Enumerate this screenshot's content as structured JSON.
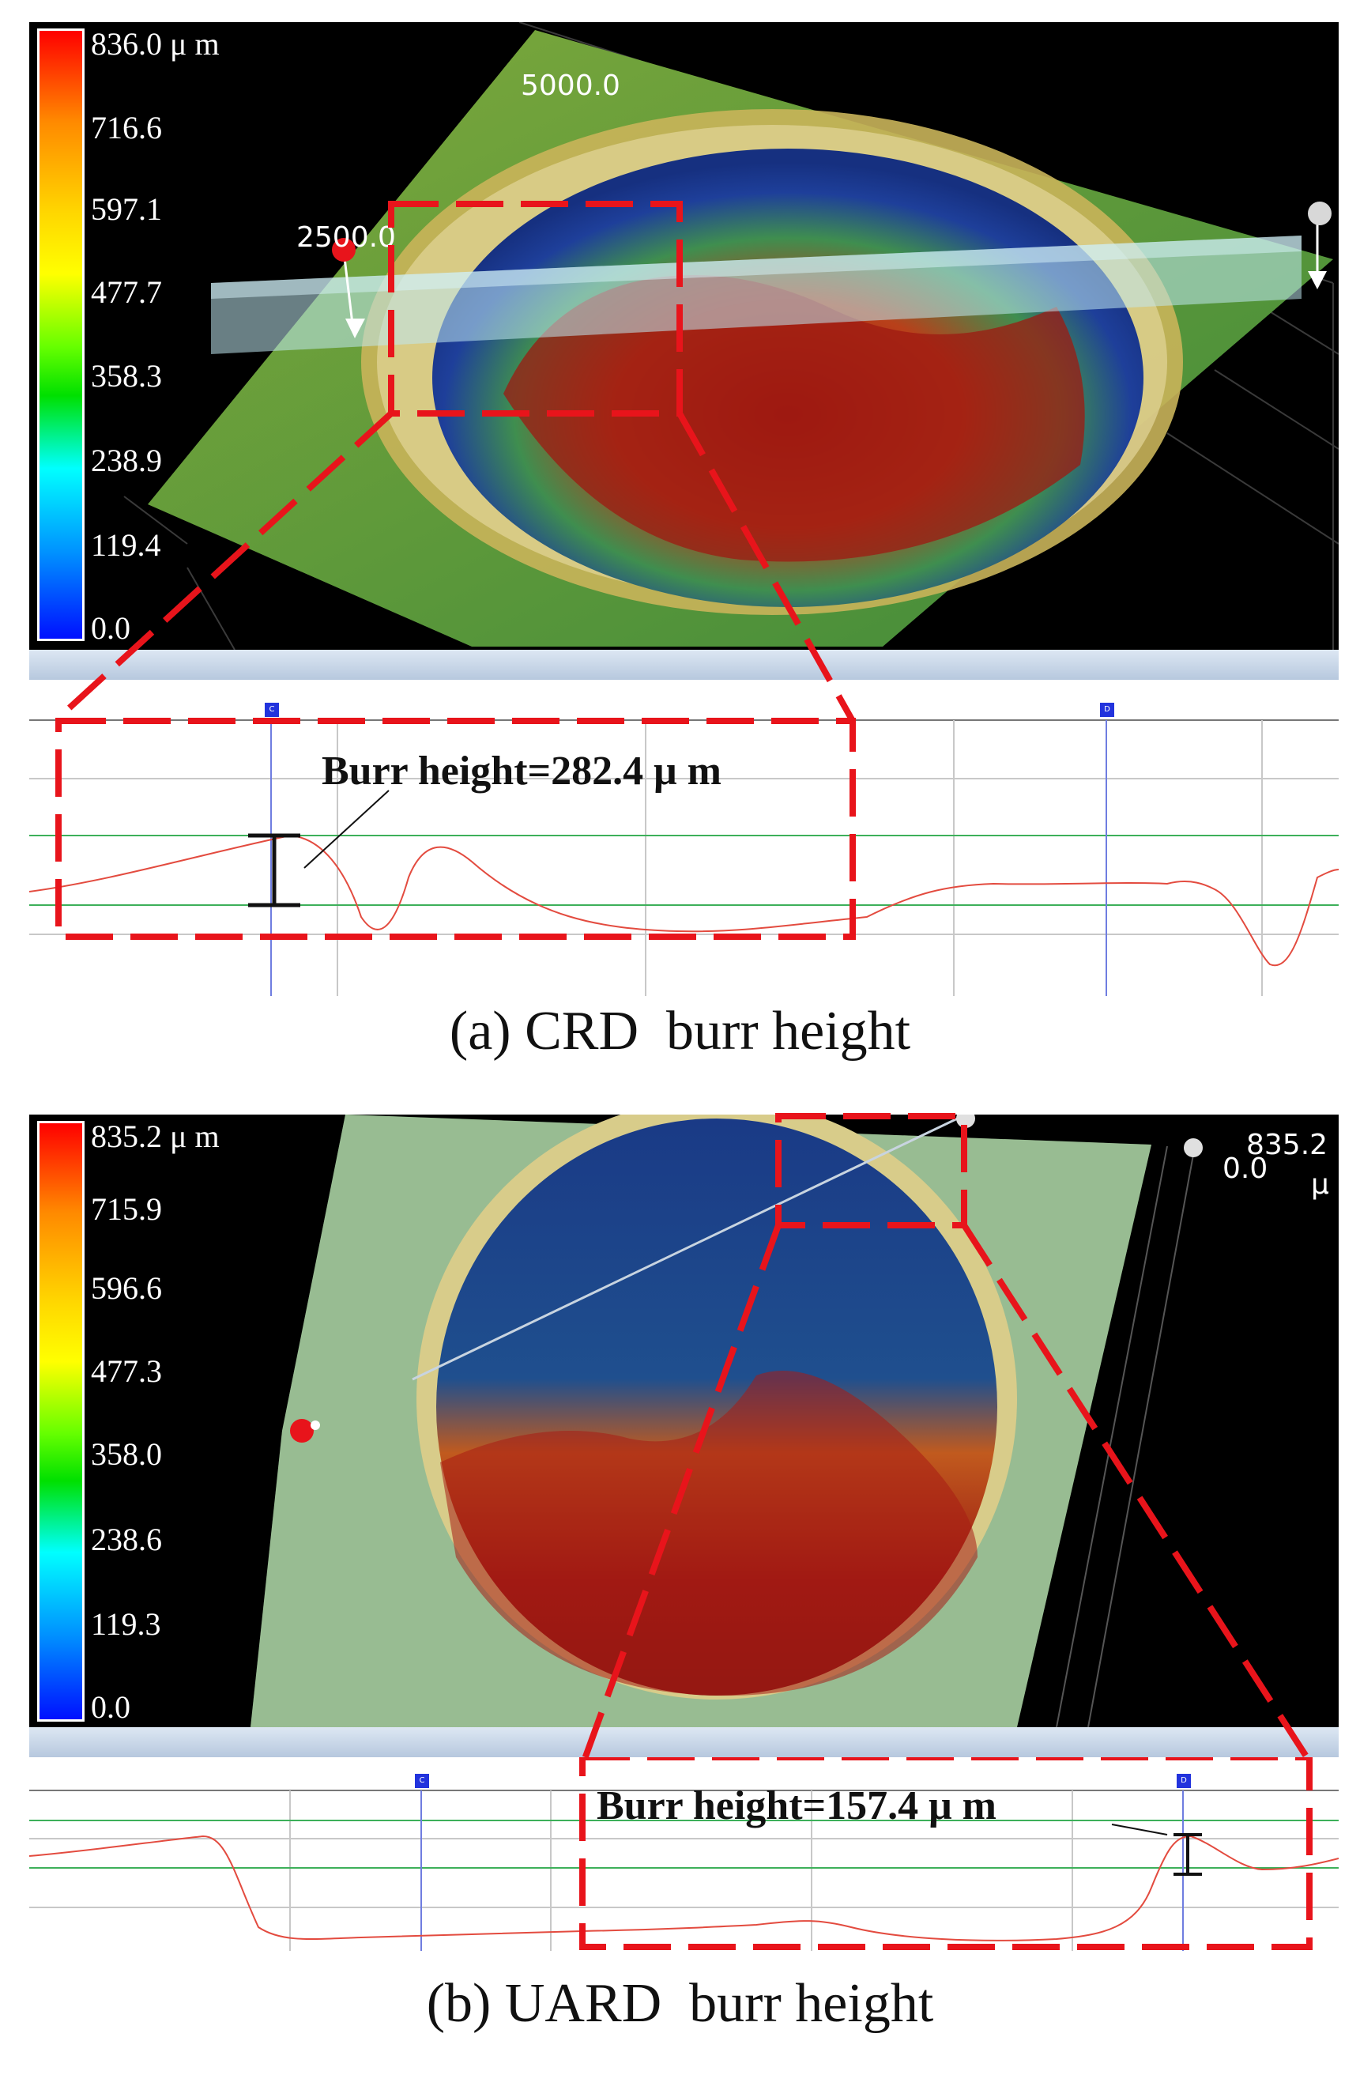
{
  "panel_a": {
    "scale": {
      "ticks": [
        "836.0 μ m",
        "716.6",
        "597.1",
        "477.7",
        "358.3",
        "238.9",
        "119.4",
        "0.0"
      ]
    },
    "axis_labels": [
      "5000.0",
      "2500.0"
    ],
    "annotation": "Burr height=282.4 μ m",
    "markers": [
      "C",
      "D"
    ],
    "caption": "(a) CRD  burr height"
  },
  "panel_b": {
    "scale": {
      "ticks": [
        "835.2 μ m",
        "715.9",
        "596.6",
        "477.3",
        "358.0",
        "238.6",
        "119.3",
        "0.0"
      ]
    },
    "corner_label": [
      "835.2",
      "0.0",
      "μ"
    ],
    "annotation": "Burr height=157.4 μ m",
    "markers": [
      "C",
      "D"
    ],
    "caption": "(b) UARD  burr height"
  },
  "colors": {
    "highlight": "#e8141b",
    "profile_line": "#e34b3f",
    "ref_line": "#3db05a"
  }
}
